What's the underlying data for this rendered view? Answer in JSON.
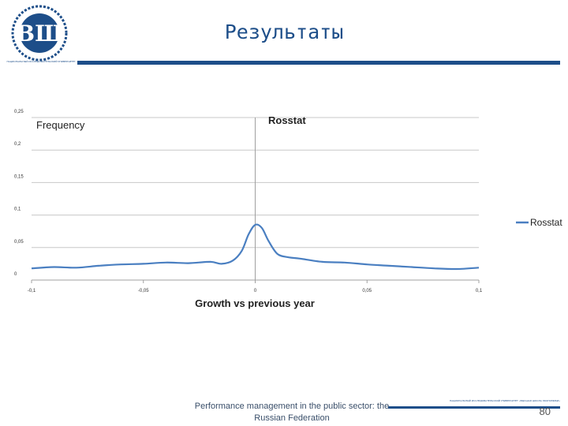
{
  "slide": {
    "title": "Результаты",
    "logo_caption": "НАЦИОНАЛЬНЫЙ ИССЛЕДОВАТЕЛЬСКИЙ УНИВЕРСИТЕТ",
    "footer_text": "Performance management in the public sector: the Russian Federation",
    "footer_university": "НАЦИОНАЛЬНЫЙ ИССЛЕДОВАТЕЛЬСКИЙ УНИВЕРСИТЕТ «ВЫСШАЯ ШКОЛА ЭКОНОМИКИ»",
    "page_number": "80"
  },
  "colors": {
    "brand": "#1d4e89",
    "series": "#4a7fc1",
    "grid": "#c8c8c8",
    "axis": "#a0a0a0"
  },
  "chart_data": {
    "type": "line",
    "title": "Rosstat",
    "ylabel": "Frequency",
    "xlabel": "Growth vs previous year",
    "xlim": [
      -0.1,
      0.1
    ],
    "ylim": [
      0,
      0.25
    ],
    "x_ticks": [
      -0.1,
      -0.05,
      0,
      0.05,
      0.1
    ],
    "x_tick_labels": [
      "-0,1",
      "-0,05",
      "0",
      "0,05",
      "0,1"
    ],
    "y_ticks": [
      0,
      0.05,
      0.1,
      0.15,
      0.2,
      0.25
    ],
    "y_tick_labels": [
      "0",
      "0,05",
      "0,1",
      "0,15",
      "0,2",
      "0,25"
    ],
    "grid": true,
    "legend_position": "right",
    "series": [
      {
        "name": "Rosstat",
        "x": [
          -0.1,
          -0.09,
          -0.08,
          -0.07,
          -0.06,
          -0.05,
          -0.04,
          -0.03,
          -0.02,
          -0.015,
          -0.01,
          -0.006,
          -0.003,
          0,
          0.003,
          0.006,
          0.01,
          0.015,
          0.02,
          0.03,
          0.04,
          0.05,
          0.06,
          0.07,
          0.08,
          0.09,
          0.1
        ],
        "y": [
          0.018,
          0.02,
          0.019,
          0.022,
          0.024,
          0.025,
          0.027,
          0.026,
          0.028,
          0.025,
          0.03,
          0.045,
          0.07,
          0.085,
          0.08,
          0.06,
          0.04,
          0.035,
          0.033,
          0.028,
          0.027,
          0.024,
          0.022,
          0.02,
          0.018,
          0.017,
          0.019
        ]
      }
    ]
  }
}
